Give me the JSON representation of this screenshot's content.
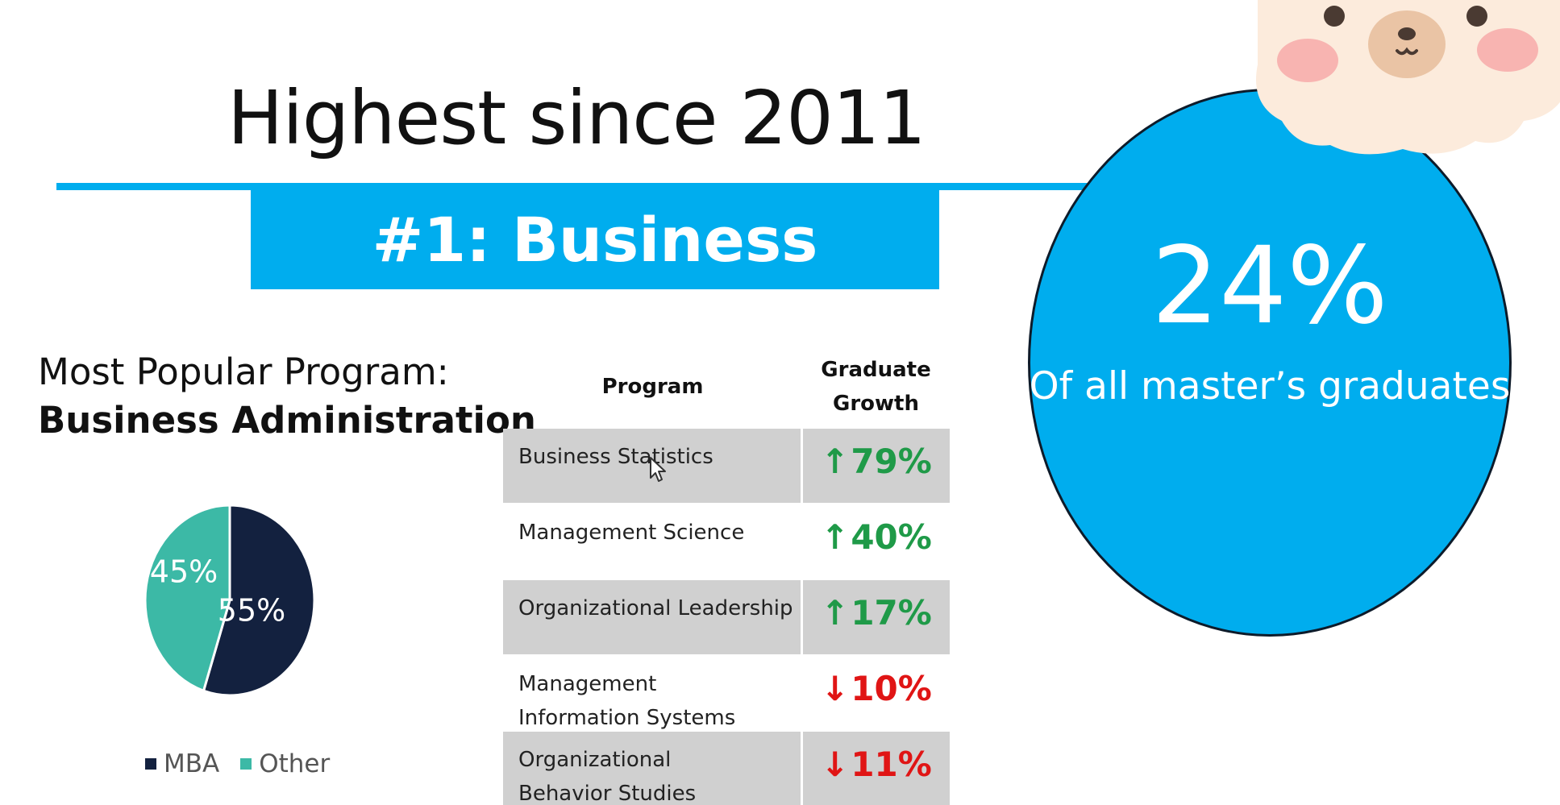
{
  "slide": {
    "title": "Highest since 2011",
    "banner": "#1: Business",
    "colors": {
      "accent": "#00adee",
      "navy": "#13213f",
      "teal": "#3cb9a6",
      "up": "#1f9a48",
      "down": "#e01515"
    }
  },
  "popular_program": {
    "label": "Most Popular Program:",
    "name": "Business Administration"
  },
  "chart_data": {
    "type": "pie",
    "slices": [
      {
        "label": "MBA",
        "value": 55,
        "display": "55%",
        "color": "#13213f"
      },
      {
        "label": "Other",
        "value": 45,
        "display": "45%",
        "color": "#3cb9a6"
      }
    ],
    "legend": [
      "MBA",
      "Other"
    ],
    "legend_position": "bottom"
  },
  "table": {
    "headers": {
      "program": "Program",
      "growth_line1": "Graduate",
      "growth_line2": "Growth"
    },
    "rows": [
      {
        "program_line1": "Business Statistics",
        "program_line2": "",
        "arrow": "↑",
        "growth": "79%",
        "direction": "up",
        "shaded": true
      },
      {
        "program_line1": "Management Science",
        "program_line2": "",
        "arrow": "↑",
        "growth": "40%",
        "direction": "up",
        "shaded": false
      },
      {
        "program_line1": "Organizational Leadership",
        "program_line2": "",
        "arrow": "↑",
        "growth": "17%",
        "direction": "up",
        "shaded": true
      },
      {
        "program_line1": "Management",
        "program_line2": "Information Systems",
        "arrow": "↓",
        "growth": "10%",
        "direction": "down",
        "shaded": false
      },
      {
        "program_line1": "Organizational",
        "program_line2": "Behavior Studies",
        "arrow": "↓",
        "growth": "11%",
        "direction": "down",
        "shaded": true
      }
    ]
  },
  "highlight": {
    "value": "24%",
    "caption": "Of all master’s graduates"
  },
  "icons": {
    "mascot": "bear-face-icon",
    "cursor": "mouse-pointer-icon"
  }
}
